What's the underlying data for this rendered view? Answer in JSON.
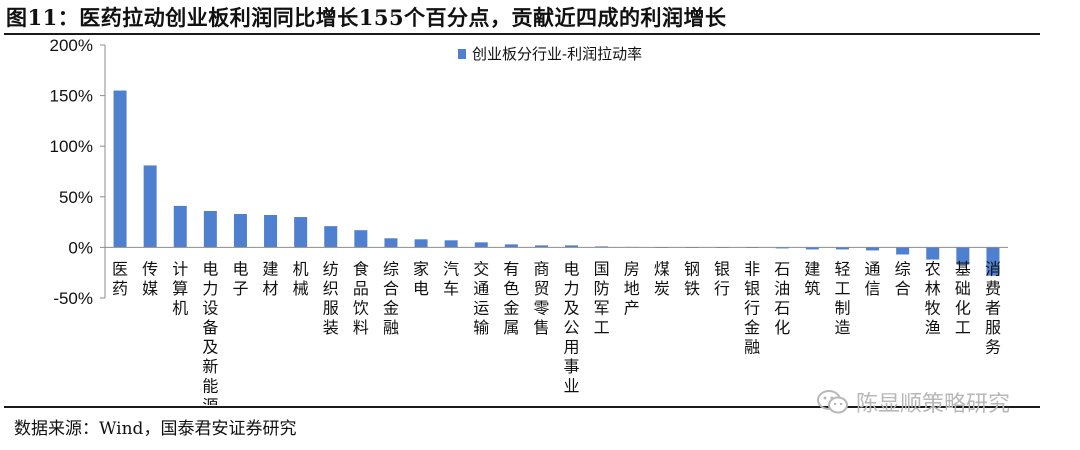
{
  "title": "图11：医药拉动创业板利润同比增长155个百分点，贡献近四成的利润增长",
  "source": "数据来源：Wind，国泰君安证券研究",
  "watermark": "陈显顺策略研究",
  "colors": {
    "bar": "#4f7fcf",
    "axis": "#8c8c8c",
    "rule": "#1a1a1a"
  },
  "chart_data": {
    "type": "bar",
    "categories": [
      "医药",
      "传媒",
      "计算机",
      "电力设备及新能源",
      "电子",
      "建材",
      "机械",
      "纺织服装",
      "食品饮料",
      "综合金融",
      "家电",
      "汽车",
      "交通运输",
      "有色金属",
      "商贸零售",
      "电力及公用事业",
      "国防军工",
      "房地产",
      "煤炭",
      "钢铁",
      "银行",
      "非银行金融",
      "石油石化",
      "建筑",
      "轻工制造",
      "通信",
      "综合",
      "农林牧渔",
      "基础化工",
      "消费者服务"
    ],
    "series": [
      {
        "name": "创业板分行业-利润拉动率",
        "values": [
          155,
          81,
          41,
          36,
          33,
          32,
          30,
          21,
          17,
          9,
          8,
          7,
          5,
          3,
          2,
          2,
          1,
          0.5,
          0,
          0,
          0,
          0,
          -1,
          -2,
          -2,
          -3,
          -7,
          -12,
          -17,
          -28
        ]
      }
    ],
    "ylim": [
      -50,
      200
    ],
    "yticks": [
      "-50%",
      "0%",
      "50%",
      "100%",
      "150%",
      "200%"
    ],
    "ytick_values": [
      -50,
      0,
      50,
      100,
      150,
      200
    ],
    "legend_position": "top-center",
    "grid": false
  }
}
